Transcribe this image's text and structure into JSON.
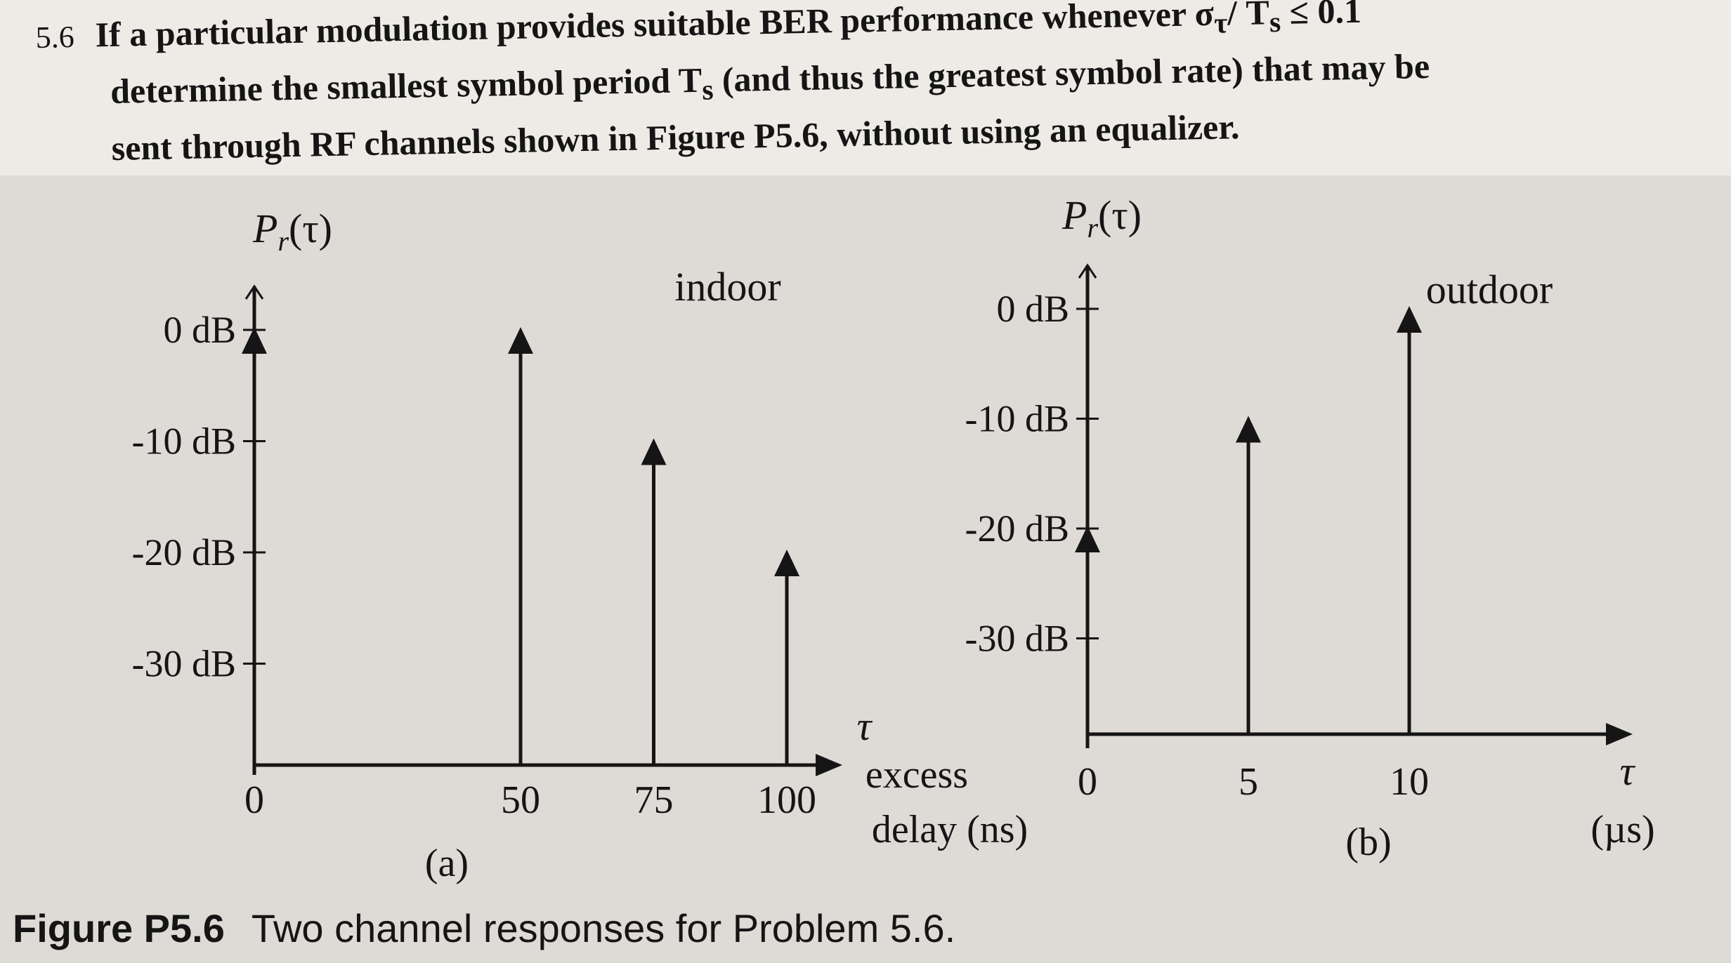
{
  "problem": {
    "number": "5.6",
    "line1": "If a particular modulation provides suitable BER performance whenever σ",
    "line1_sub": "τ",
    "line1_end": "/ T",
    "line1_sub2": "s",
    "line1_tail": " ≤ 0.1",
    "line2": "determine the smallest symbol period T",
    "line2_sub": "s",
    "line2_tail": " (and thus the greatest symbol rate) that may be",
    "line3": "sent through RF channels shown in Figure P5.6, without using an equalizer."
  },
  "caption": {
    "label": "Figure P5.6",
    "text": "Two channel responses for Problem 5.6."
  },
  "colors": {
    "ink": "#151515",
    "paper": "#dedbd6"
  },
  "chart_data": [
    {
      "type": "bar",
      "panel_label": "(a)",
      "title": "indoor",
      "ylabel": "P_r(τ)",
      "xlabel": "τ excess delay (ns)",
      "x_ticks": [
        "0",
        "50",
        "75",
        "100"
      ],
      "y_ticks": [
        "0 dB",
        "-10 dB",
        "-20 dB",
        "-30 dB"
      ],
      "ylim": [
        -40,
        0
      ],
      "x": [
        0,
        50,
        75,
        100
      ],
      "values": [
        0,
        0,
        -10,
        -20
      ]
    },
    {
      "type": "bar",
      "panel_label": "(b)",
      "title": "outdoor",
      "ylabel": "P_r(τ)",
      "xlabel": "τ (µs)",
      "x_ticks": [
        "0",
        "5",
        "10"
      ],
      "y_ticks": [
        "0 dB",
        "-10 dB",
        "-20 dB",
        "-30 dB"
      ],
      "ylim": [
        -40,
        0
      ],
      "x": [
        0,
        5,
        10
      ],
      "values": [
        -20,
        -10,
        0
      ]
    }
  ]
}
